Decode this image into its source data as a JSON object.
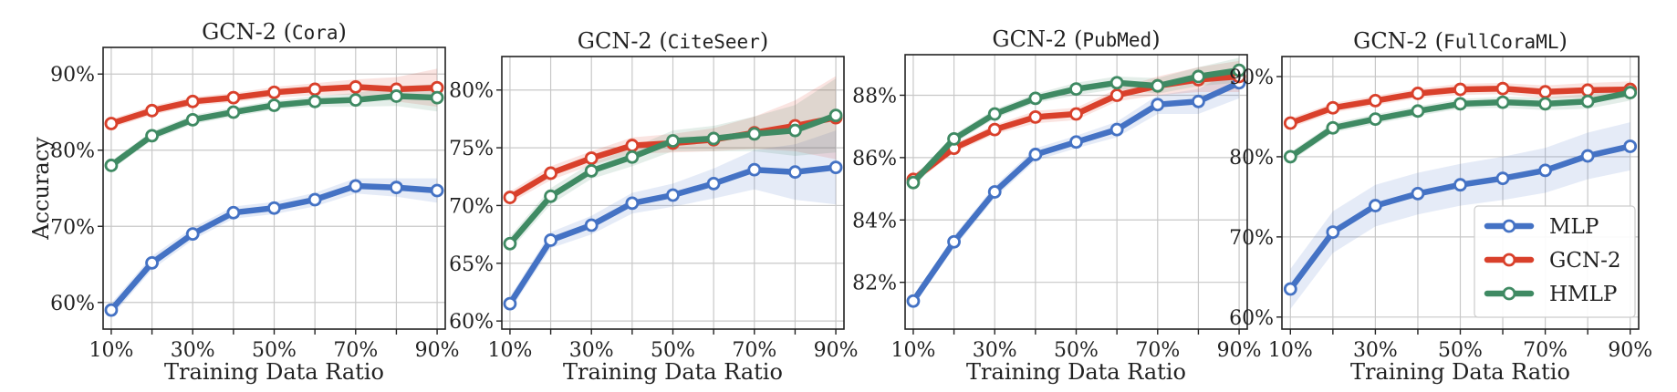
{
  "chart_data": [
    {
      "type": "line",
      "title": "GCN-2",
      "title_dataset": "Cora",
      "xlabel": "Training Data Ratio",
      "ylabel": "Accuracy",
      "x": [
        10,
        20,
        30,
        40,
        50,
        60,
        70,
        80,
        90
      ],
      "xticks": [
        10,
        30,
        50,
        70,
        90
      ],
      "xtick_labels": [
        "10%",
        "30%",
        "50%",
        "70%",
        "90%"
      ],
      "xlim": [
        8,
        92
      ],
      "ylim": [
        56.5,
        93.5
      ],
      "yticks": [
        60,
        70,
        80,
        90
      ],
      "ytick_labels": [
        "60%",
        "70%",
        "80%",
        "90%"
      ],
      "grid": true,
      "series": [
        {
          "name": "MLP",
          "color": "#4472c4",
          "values": [
            59.0,
            65.2,
            69.0,
            71.8,
            72.4,
            73.5,
            75.3,
            75.1,
            74.7
          ],
          "band": [
            0.9,
            0.9,
            0.8,
            0.8,
            0.8,
            0.9,
            1.0,
            1.2,
            1.6
          ]
        },
        {
          "name": "GCN-2",
          "color": "#d9402b",
          "values": [
            83.5,
            85.2,
            86.4,
            86.9,
            87.6,
            88.0,
            88.3,
            88.0,
            88.2
          ],
          "band": [
            0.6,
            0.6,
            0.6,
            0.6,
            0.7,
            0.8,
            1.0,
            1.6,
            2.5
          ]
        },
        {
          "name": "HMLP",
          "color": "#3f8a63",
          "values": [
            78.0,
            81.9,
            84.0,
            85.0,
            85.9,
            86.4,
            86.6,
            87.1,
            86.9
          ],
          "band": [
            0.6,
            0.6,
            0.6,
            0.6,
            0.6,
            0.7,
            0.9,
            1.3,
            1.8
          ]
        }
      ]
    },
    {
      "type": "line",
      "title": "GCN-2",
      "title_dataset": "CiteSeer",
      "xlabel": "Training Data Ratio",
      "ylabel": "",
      "x": [
        10,
        20,
        30,
        40,
        50,
        60,
        70,
        80,
        90
      ],
      "xticks": [
        10,
        30,
        50,
        70,
        90
      ],
      "xtick_labels": [
        "10%",
        "30%",
        "50%",
        "70%",
        "90%"
      ],
      "xlim": [
        8,
        92
      ],
      "ylim": [
        59.3,
        82.9
      ],
      "yticks": [
        60,
        65,
        70,
        75,
        80
      ],
      "ytick_labels": [
        "60%",
        "65%",
        "70%",
        "75%",
        "80%"
      ],
      "grid": true,
      "series": [
        {
          "name": "MLP",
          "color": "#4472c4",
          "values": [
            61.5,
            67.0,
            68.3,
            70.2,
            70.9,
            71.9,
            73.1,
            72.9,
            73.3
          ],
          "band": [
            0.6,
            0.7,
            0.8,
            0.9,
            1.0,
            1.3,
            1.7,
            2.4,
            3.2
          ]
        },
        {
          "name": "GCN-2",
          "color": "#d9402b",
          "values": [
            70.7,
            72.8,
            74.1,
            75.2,
            75.4,
            75.7,
            76.3,
            76.9,
            77.6
          ],
          "band": [
            0.5,
            0.6,
            0.6,
            0.7,
            0.8,
            1.0,
            1.4,
            2.2,
            3.6
          ]
        },
        {
          "name": "HMLP",
          "color": "#3f8a63",
          "values": [
            66.7,
            70.8,
            73.0,
            74.2,
            75.6,
            75.8,
            76.2,
            76.5,
            77.8
          ],
          "band": [
            0.6,
            0.7,
            0.7,
            0.8,
            0.9,
            1.1,
            1.5,
            2.2,
            3.2
          ]
        }
      ]
    },
    {
      "type": "line",
      "title": "GCN-2",
      "title_dataset": "PubMed",
      "xlabel": "Training Data Ratio",
      "ylabel": "",
      "x": [
        10,
        20,
        30,
        40,
        50,
        60,
        70,
        80,
        90
      ],
      "xticks": [
        10,
        30,
        50,
        70,
        90
      ],
      "xtick_labels": [
        "10%",
        "30%",
        "50%",
        "70%",
        "90%"
      ],
      "xlim": [
        8,
        92
      ],
      "ylim": [
        80.5,
        89.3
      ],
      "yticks": [
        82,
        84,
        86,
        88
      ],
      "ytick_labels": [
        "82%",
        "84%",
        "86%",
        "88%"
      ],
      "grid": true,
      "series": [
        {
          "name": "MLP",
          "color": "#4472c4",
          "values": [
            81.4,
            83.3,
            84.9,
            86.1,
            86.5,
            86.9,
            87.7,
            87.8,
            88.4
          ],
          "band": [
            0.15,
            0.2,
            0.2,
            0.2,
            0.2,
            0.25,
            0.3,
            0.4,
            0.5
          ]
        },
        {
          "name": "GCN-2",
          "color": "#d9402b",
          "values": [
            85.3,
            86.3,
            86.9,
            87.3,
            87.4,
            88.0,
            88.3,
            88.5,
            88.6
          ],
          "band": [
            0.15,
            0.15,
            0.15,
            0.2,
            0.2,
            0.2,
            0.3,
            0.4,
            0.5
          ]
        },
        {
          "name": "HMLP",
          "color": "#3f8a63",
          "values": [
            85.2,
            86.6,
            87.4,
            87.9,
            88.2,
            88.4,
            88.3,
            88.6,
            88.8
          ],
          "band": [
            0.15,
            0.15,
            0.15,
            0.15,
            0.2,
            0.2,
            0.25,
            0.3,
            0.4
          ]
        }
      ]
    },
    {
      "type": "line",
      "title": "GCN-2",
      "title_dataset": "FullCoraML",
      "xlabel": "Training Data Ratio",
      "ylabel": "",
      "x": [
        10,
        20,
        30,
        40,
        50,
        60,
        70,
        80,
        90
      ],
      "xticks": [
        10,
        30,
        50,
        70,
        90
      ],
      "xtick_labels": [
        "10%",
        "30%",
        "50%",
        "70%",
        "90%"
      ],
      "xlim": [
        8,
        92
      ],
      "ylim": [
        58.5,
        92.5
      ],
      "yticks": [
        60,
        70,
        80,
        90
      ],
      "ytick_labels": [
        "60%",
        "70%",
        "80%",
        "90%"
      ],
      "grid": true,
      "legend_position": "lower right",
      "series": [
        {
          "name": "MLP",
          "color": "#4472c4",
          "values": [
            63.5,
            70.6,
            73.9,
            75.4,
            76.5,
            77.3,
            78.3,
            80.1,
            81.3
          ],
          "band": [
            2.5,
            2.6,
            2.6,
            2.6,
            2.6,
            2.7,
            2.8,
            2.9,
            3.0
          ]
        },
        {
          "name": "GCN-2",
          "color": "#d9402b",
          "values": [
            84.2,
            86.1,
            87.0,
            87.9,
            88.4,
            88.5,
            88.1,
            88.3,
            88.4
          ],
          "band": [
            0.6,
            0.6,
            0.6,
            0.6,
            0.7,
            0.7,
            0.8,
            0.9,
            1.0
          ]
        },
        {
          "name": "HMLP",
          "color": "#3f8a63",
          "values": [
            80.0,
            83.6,
            84.7,
            85.7,
            86.6,
            86.8,
            86.6,
            86.9,
            88.0
          ],
          "band": [
            0.6,
            0.6,
            0.6,
            0.6,
            0.6,
            0.7,
            0.8,
            0.9,
            1.0
          ]
        }
      ]
    }
  ],
  "legend": {
    "entries": [
      {
        "label": "MLP",
        "color": "#4472c4"
      },
      {
        "label": "GCN-2",
        "color": "#d9402b"
      },
      {
        "label": "HMLP",
        "color": "#3f8a63"
      }
    ]
  }
}
